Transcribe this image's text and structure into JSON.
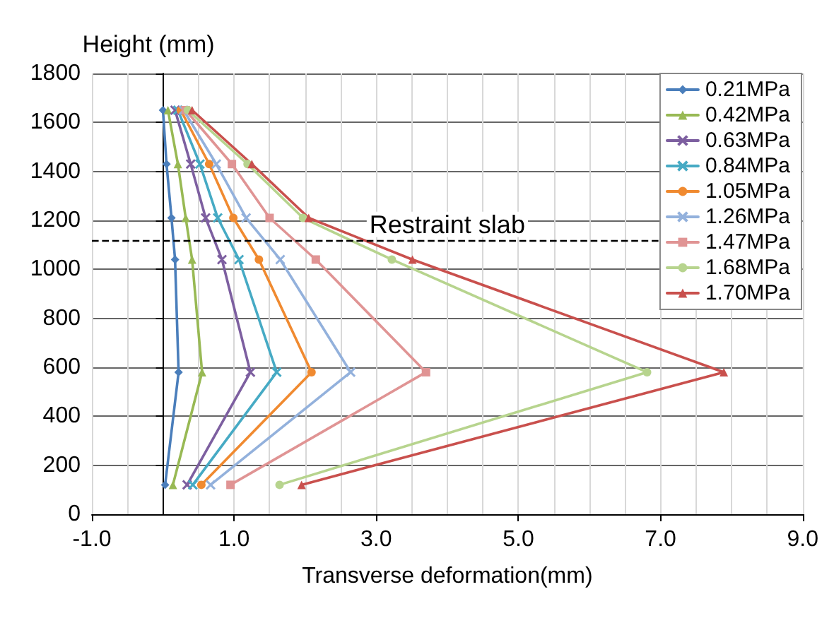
{
  "chart_data": {
    "type": "line",
    "xlabel": "Transverse deformation(mm)",
    "ylabel": "Height (mm)",
    "xlim": [
      -1,
      9
    ],
    "xticks": [
      {
        "value": -1,
        "label": "-1.0"
      },
      {
        "value": 1,
        "label": "1.0"
      },
      {
        "value": 3,
        "label": "3.0"
      },
      {
        "value": 5,
        "label": "5.0"
      },
      {
        "value": 7,
        "label": "7.0"
      },
      {
        "value": 9,
        "label": "9.0"
      }
    ],
    "ylim": [
      0,
      1800
    ],
    "yticks": [
      0,
      200,
      400,
      600,
      800,
      1000,
      1200,
      1400,
      1600,
      1800
    ],
    "grid": true,
    "legend": "top right",
    "line_style": "solid",
    "ref_lines": [
      {
        "axis": "y",
        "value": 1120,
        "label": "Restraint slab",
        "color": "#000000",
        "line_style": "dashed"
      }
    ],
    "series": [
      {
        "name": "0.21MPa",
        "color": "#4a7ebb",
        "marker": "diamond",
        "x": [
          0.0,
          0.05,
          0.12,
          0.17,
          0.22,
          0.03
        ],
        "values": [
          1650,
          1430,
          1210,
          1040,
          580,
          120
        ]
      },
      {
        "name": "0.42MPa",
        "color": "#98b954",
        "marker": "triangle",
        "x": [
          0.07,
          0.21,
          0.32,
          0.41,
          0.55,
          0.14
        ],
        "values": [
          1650,
          1430,
          1210,
          1040,
          580,
          120
        ]
      },
      {
        "name": "0.63MPa",
        "color": "#7d5fa0",
        "marker": "cross",
        "x": [
          0.17,
          0.39,
          0.6,
          0.83,
          1.23,
          0.34
        ],
        "values": [
          1650,
          1430,
          1210,
          1040,
          580,
          120
        ]
      },
      {
        "name": "0.84MPa",
        "color": "#46aac4",
        "marker": "cross",
        "x": [
          0.21,
          0.52,
          0.77,
          1.07,
          1.6,
          0.42
        ],
        "values": [
          1650,
          1430,
          1210,
          1040,
          580,
          120
        ]
      },
      {
        "name": "1.05MPa",
        "color": "#f08a30",
        "marker": "circle",
        "x": [
          0.25,
          0.65,
          0.99,
          1.35,
          2.09,
          0.54
        ],
        "values": [
          1650,
          1430,
          1210,
          1040,
          580,
          120
        ]
      },
      {
        "name": "1.26MPa",
        "color": "#93b1dc",
        "marker": "cross",
        "x": [
          0.29,
          0.75,
          1.17,
          1.65,
          2.64,
          0.67
        ],
        "values": [
          1650,
          1430,
          1210,
          1040,
          580,
          120
        ]
      },
      {
        "name": "1.47MPa",
        "color": "#e09494",
        "marker": "square",
        "x": [
          0.32,
          0.97,
          1.5,
          2.15,
          3.7,
          0.95
        ],
        "values": [
          1650,
          1430,
          1210,
          1040,
          580,
          120
        ]
      },
      {
        "name": "1.68MPa",
        "color": "#b7d48e",
        "marker": "circle",
        "x": [
          0.35,
          1.19,
          1.97,
          3.22,
          6.81,
          1.64
        ],
        "values": [
          1650,
          1430,
          1210,
          1040,
          580,
          120
        ]
      },
      {
        "name": "1.70MPa",
        "color": "#c9504d",
        "marker": "triangle",
        "x": [
          0.41,
          1.25,
          2.05,
          3.51,
          7.89,
          1.95
        ],
        "values": [
          1650,
          1430,
          1210,
          1040,
          580,
          120
        ]
      }
    ]
  }
}
